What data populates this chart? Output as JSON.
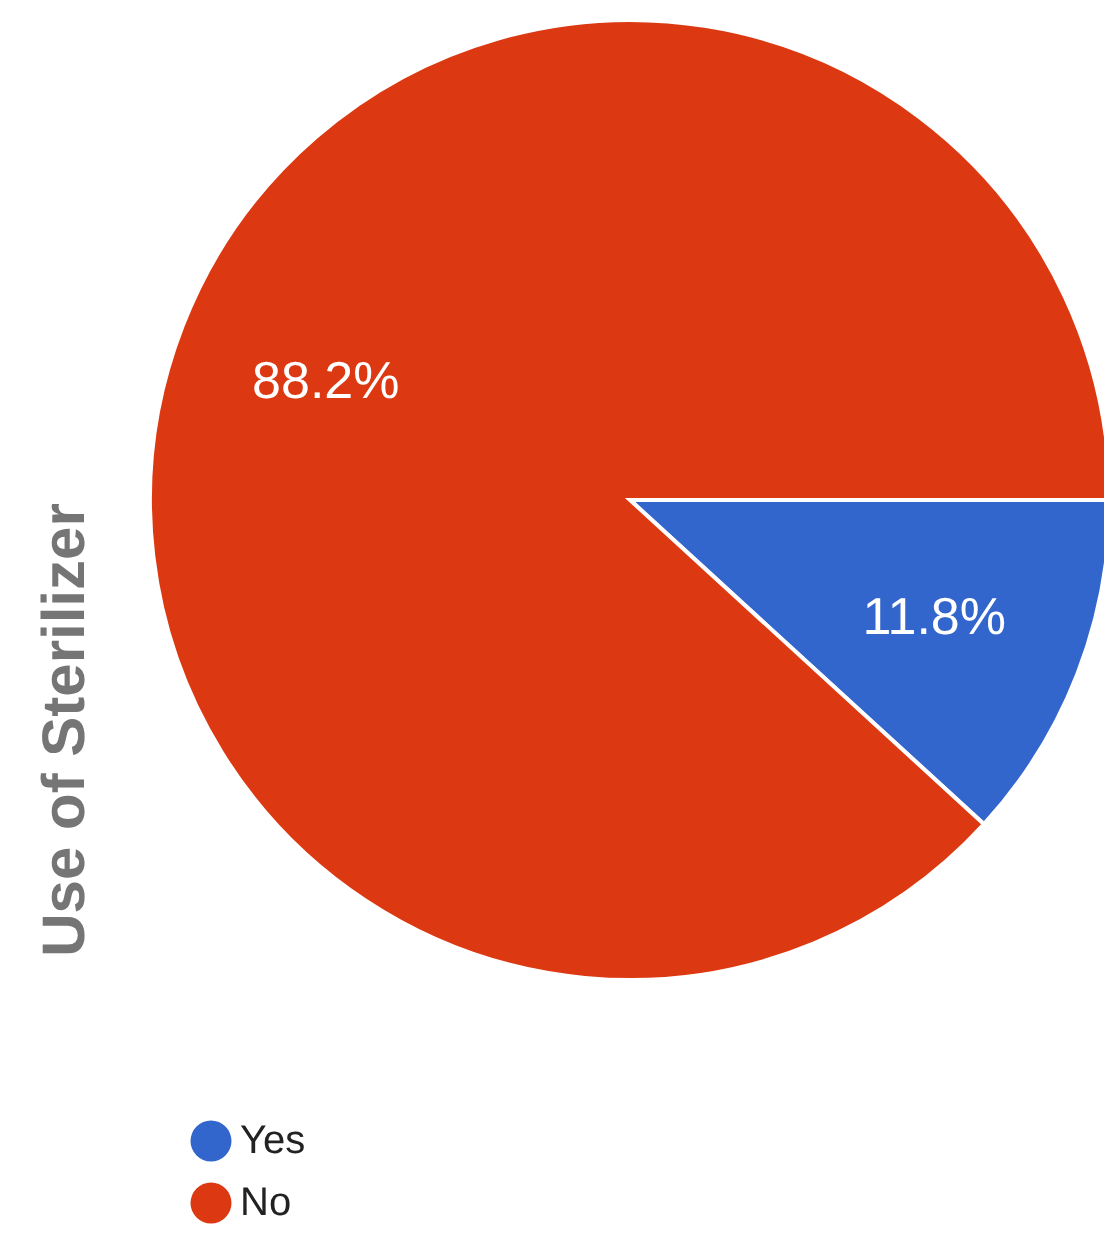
{
  "chart_data": {
    "type": "pie",
    "ylabel": "Use of Sterilizer",
    "categories": [
      "Yes",
      "No"
    ],
    "values": [
      11.8,
      88.2
    ],
    "colors": [
      "#3366cc",
      "#dc3912"
    ],
    "value_labels": [
      "11.8%",
      "88.2%"
    ],
    "legend": "bottom left"
  }
}
